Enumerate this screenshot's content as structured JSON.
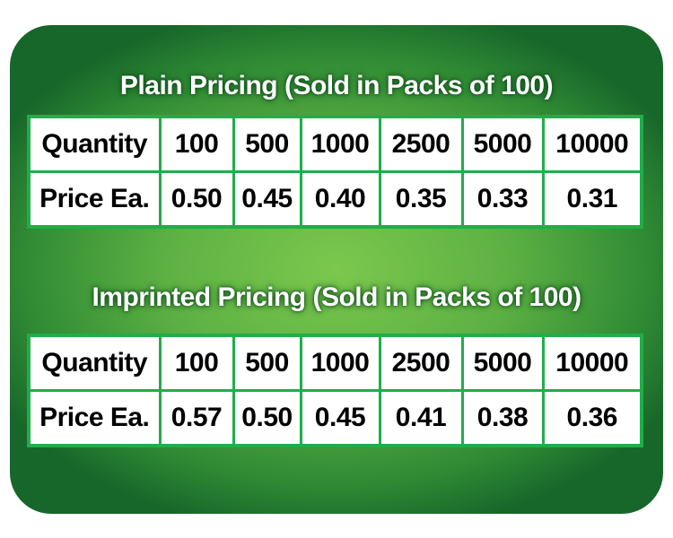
{
  "colors": {
    "panel": "#4fa83e",
    "border": "#1fae4a",
    "title": "#ffffff"
  },
  "sections": [
    {
      "title": "Plain Pricing (Sold in Packs of 100)",
      "quantity_label": "Quantity",
      "price_label": "Price Ea.",
      "quantities": [
        "100",
        "500",
        "1000",
        "2500",
        "5000",
        "10000"
      ],
      "prices": [
        "0.50",
        "0.45",
        "0.40",
        "0.35",
        "0.33",
        "0.31"
      ]
    },
    {
      "title": "Imprinted Pricing (Sold in Packs of 100)",
      "quantity_label": "Quantity",
      "price_label": "Price Ea.",
      "quantities": [
        "100",
        "500",
        "1000",
        "2500",
        "5000",
        "10000"
      ],
      "prices": [
        "0.57",
        "0.50",
        "0.45",
        "0.41",
        "0.38",
        "0.36"
      ]
    }
  ]
}
